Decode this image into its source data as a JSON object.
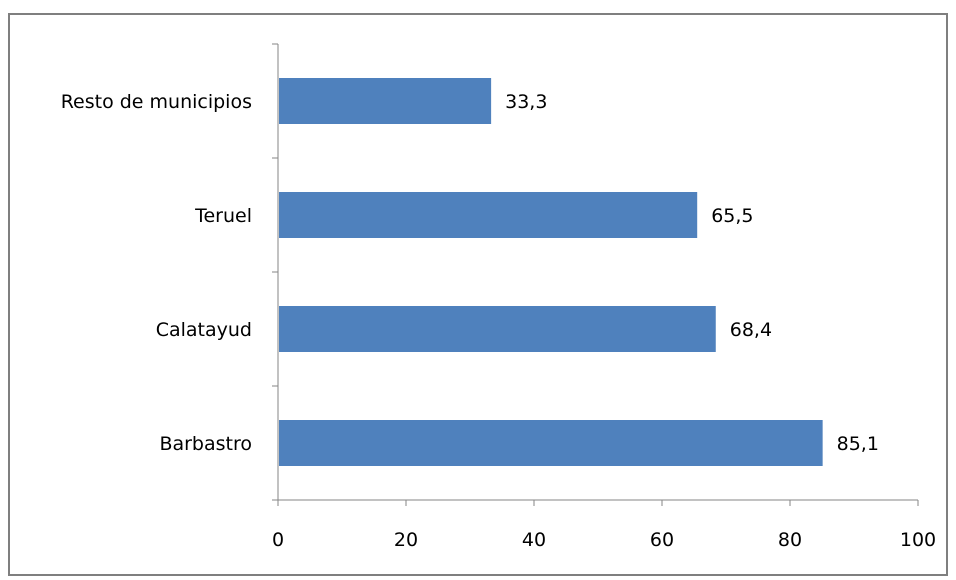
{
  "chart_data": {
    "type": "bar",
    "orientation": "horizontal",
    "title": "",
    "xlabel": "",
    "ylabel": "",
    "categories": [
      "Resto de municipios",
      "Teruel",
      "Calatayud",
      "Barbastro"
    ],
    "values": [
      33.3,
      65.5,
      68.4,
      85.1
    ],
    "value_labels": [
      "33,3",
      "65,5",
      "68,4",
      "85,1"
    ],
    "xlim": [
      0,
      100
    ],
    "xticks": [
      0,
      20,
      40,
      60,
      80,
      100
    ],
    "xtick_labels": [
      "0",
      "20",
      "40",
      "60",
      "80",
      "100"
    ],
    "grid": false,
    "legend": "none",
    "bar_color": "#4f81bd"
  }
}
